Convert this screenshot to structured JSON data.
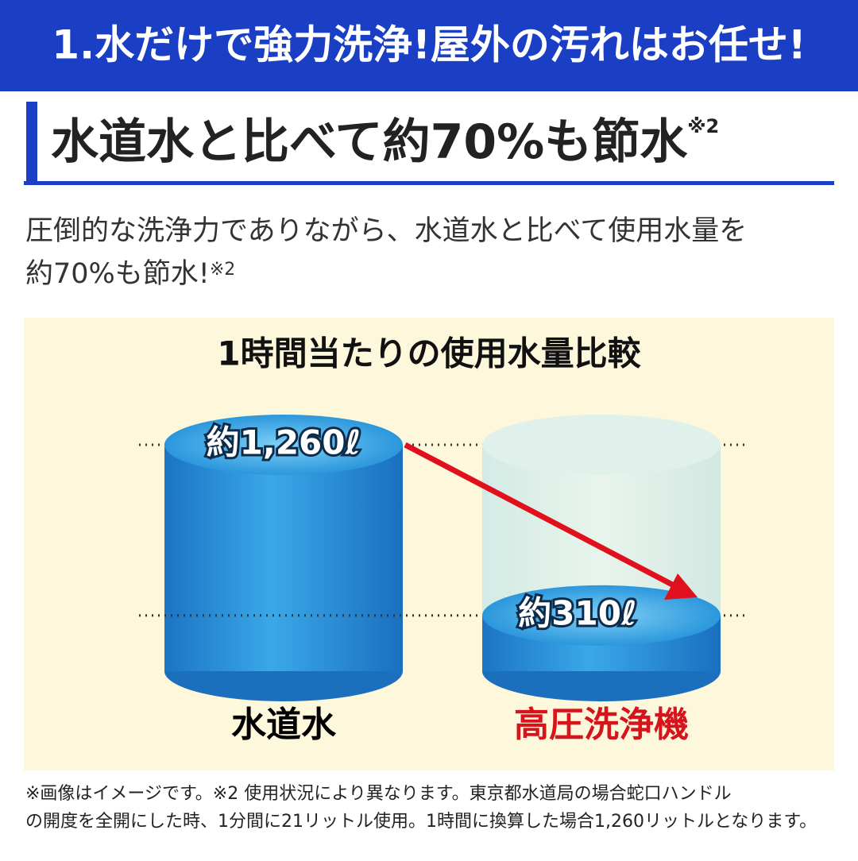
{
  "header": {
    "title": "1.水だけで強力洗浄!屋外の汚れはお任せ!"
  },
  "heading": {
    "text": "水道水と比べて約70%も節水",
    "note": "※2"
  },
  "body": {
    "line1": "圧倒的な洗浄力でありながら、水道水と比べて使用水量を",
    "line2": "約70%も節水!",
    "note": "※2"
  },
  "chart_data": {
    "type": "cylinder",
    "title": "1時間当たりの使用水量比較",
    "categories": [
      "水道水",
      "高圧洗浄機"
    ],
    "values": [
      1260,
      310
    ],
    "value_labels": [
      "約1,260ℓ",
      "約310ℓ"
    ],
    "colors": [
      "#000000",
      "#d6141c"
    ]
  },
  "footnote": {
    "line1": "※画像はイメージです。※2 使用状況により異なります。東京都水道局の場合蛇口ハンドル",
    "line2": "の開度を全開にした時、1分間に21リットル使用。1時間に換算した場合1,260リットルとなります。"
  }
}
